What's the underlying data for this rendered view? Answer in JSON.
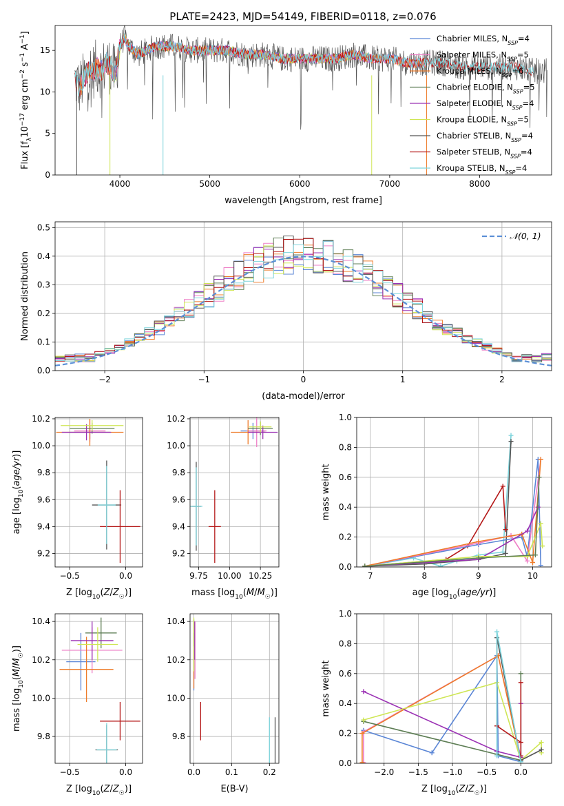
{
  "figure_title": "PLATE=2423, MJD=54149, FIBERID=0118, z=0.076",
  "colors": {
    "chabrier_miles": "#5b86d6",
    "salpeter_miles": "#ee7ec6",
    "kroupa_miles": "#ee7c2a",
    "chabrier_elodie": "#5e7e55",
    "salpeter_elodie": "#9b31b4",
    "kroupa_elodie": "#cfe655",
    "chabrier_stelib": "#555555",
    "salpeter_stelib": "#b51818",
    "kroupa_stelib": "#7dd4dc",
    "normal": "#5b8fd6"
  },
  "chart_data": [
    {
      "id": "spectrum",
      "type": "line",
      "title": "PLATE=2423, MJD=54149, FIBERID=0118, z=0.076",
      "xlabel": "wavelength [Angstrom, rest frame]",
      "ylabel": "Flux [f_λ10^-17 erg cm^-2 s^-1 A^-1]",
      "xlim": [
        3280,
        8800
      ],
      "ylim": [
        0,
        18
      ],
      "xticks": [
        4000,
        5000,
        6000,
        7000,
        8000
      ],
      "yticks": [
        0,
        5,
        10,
        15
      ],
      "grid": false,
      "legend_position": "top-right",
      "legend": [
        {
          "key": "chabrier_miles",
          "label": "Chabrier MILES, N",
          "sub": "SSP",
          "suffix": "=4"
        },
        {
          "key": "salpeter_miles",
          "label": "Salpeter MILES, N",
          "sub": "SSP",
          "suffix": "=5"
        },
        {
          "key": "kroupa_miles",
          "label": "Kroupa MILES, N",
          "sub": "SSP",
          "suffix": "=6"
        },
        {
          "key": "chabrier_elodie",
          "label": "Chabrier ELODIE, N",
          "sub": "SSP",
          "suffix": "=5"
        },
        {
          "key": "salpeter_elodie",
          "label": "Salpeter ELODIE, N",
          "sub": "SSP",
          "suffix": "=4"
        },
        {
          "key": "kroupa_elodie",
          "label": "Kroupa ELODIE, N",
          "sub": "SSP",
          "suffix": "=5"
        },
        {
          "key": "chabrier_stelib",
          "label": "Chabrier STELIB, N",
          "sub": "SSP",
          "suffix": "=4"
        },
        {
          "key": "salpeter_stelib",
          "label": "Salpeter STELIB, N",
          "sub": "SSP",
          "suffix": "=4"
        },
        {
          "key": "kroupa_stelib",
          "label": "Kroupa STELIB, N",
          "sub": "SSP",
          "suffix": "=4"
        }
      ],
      "data_series": {
        "x": [
          3500,
          3550,
          3600,
          3650,
          3700,
          3750,
          3800,
          3850,
          3900,
          3950,
          4000,
          4050,
          4100,
          4150,
          4200,
          4300,
          4400,
          4500,
          4600,
          4800,
          5000,
          5200,
          5400,
          5600,
          5800,
          6000,
          6200,
          6400,
          6600,
          6800,
          7000,
          7200,
          7400,
          7600,
          7800,
          8000,
          8200,
          8400,
          8600,
          8800
        ],
        "y": [
          11.5,
          10.5,
          11.5,
          12.5,
          12.5,
          13.0,
          12.5,
          13.5,
          13.0,
          12.0,
          15.5,
          16.5,
          15.5,
          15.0,
          14.5,
          15.0,
          15.5,
          15.5,
          15.5,
          15.0,
          15.0,
          15.0,
          14.5,
          14.5,
          14.0,
          14.0,
          14.0,
          14.0,
          14.5,
          14.0,
          14.0,
          13.5,
          13.5,
          13.5,
          13.0,
          13.0,
          13.0,
          13.0,
          12.5,
          12.5
        ]
      }
    },
    {
      "id": "residuals",
      "type": "histogram",
      "xlabel": "(data-model)/error",
      "ylabel": "Normed distribution",
      "xlim": [
        -2.5,
        2.5
      ],
      "ylim": [
        0,
        0.52
      ],
      "xticks": [
        -2,
        -1,
        0,
        1,
        2
      ],
      "yticks": [
        0.0,
        0.1,
        0.2,
        0.3,
        0.4,
        0.5
      ],
      "grid": true,
      "legend_position": "top-right",
      "legend": [
        {
          "key": "normal",
          "label": "𝒩(0, 1)"
        }
      ],
      "bin_width": 0.1,
      "bin_start": -2.5
    },
    {
      "id": "age_vs_Z",
      "type": "scatter",
      "xlabel": "Z [log10(Z/Z☉)]",
      "ylabel": "age  [log10(age/yr)]",
      "xlim": [
        -0.63,
        0.15
      ],
      "ylim": [
        9.1,
        10.21
      ],
      "xticks": [
        -0.5,
        0.0
      ],
      "yticks": [
        9.2,
        9.4,
        9.6,
        9.8,
        10.0,
        10.2
      ],
      "grid": true,
      "points": [
        {
          "key": "chabrier_miles",
          "x": -0.32,
          "y": 10.1,
          "xerr": 0.18,
          "yerr": 0.05
        },
        {
          "key": "salpeter_miles",
          "x": -0.32,
          "y": 10.11,
          "xerr": 0.14,
          "yerr": 0.08
        },
        {
          "key": "kroupa_miles",
          "x": -0.32,
          "y": 10.1,
          "xerr": 0.3,
          "yerr": 0.1
        },
        {
          "key": "chabrier_elodie",
          "x": -0.3,
          "y": 10.13,
          "xerr": 0.2,
          "yerr": 0.04
        },
        {
          "key": "salpeter_elodie",
          "x": -0.35,
          "y": 10.1,
          "xerr": 0.22,
          "yerr": 0.06
        },
        {
          "key": "kroupa_elodie",
          "x": -0.3,
          "y": 10.15,
          "xerr": 0.28,
          "yerr": 0.04
        },
        {
          "key": "chabrier_stelib",
          "x": -0.17,
          "y": 9.56,
          "xerr": 0.13,
          "yerr": 0.33
        },
        {
          "key": "salpeter_stelib",
          "x": -0.05,
          "y": 9.4,
          "xerr": 0.18,
          "yerr": 0.27
        },
        {
          "key": "kroupa_stelib",
          "x": -0.17,
          "y": 9.56,
          "xerr": 0.08,
          "yerr": 0.29
        }
      ]
    },
    {
      "id": "age_vs_mass",
      "type": "scatter",
      "xlabel": "mass [log10(M/M☉)]",
      "ylabel": "",
      "xlim": [
        9.68,
        10.4
      ],
      "ylim": [
        9.1,
        10.21
      ],
      "xticks": [
        9.75,
        10.0,
        10.25
      ],
      "yticks": [
        9.2,
        9.4,
        9.6,
        9.8,
        10.0,
        10.2
      ],
      "grid": true,
      "points": [
        {
          "key": "chabrier_miles",
          "x": 10.19,
          "y": 10.11,
          "xerr": 0.1,
          "yerr": 0.06
        },
        {
          "key": "salpeter_miles",
          "x": 10.22,
          "y": 10.11,
          "xerr": 0.08,
          "yerr": 0.12
        },
        {
          "key": "kroupa_miles",
          "x": 10.15,
          "y": 10.1,
          "xerr": 0.14,
          "yerr": 0.09
        },
        {
          "key": "chabrier_elodie",
          "x": 10.25,
          "y": 10.13,
          "xerr": 0.1,
          "yerr": 0.05
        },
        {
          "key": "salpeter_elodie",
          "x": 10.27,
          "y": 10.1,
          "xerr": 0.12,
          "yerr": 0.05
        },
        {
          "key": "kroupa_elodie",
          "x": 10.25,
          "y": 10.14,
          "xerr": 0.09,
          "yerr": 0.04
        },
        {
          "key": "chabrier_stelib",
          "x": 9.73,
          "y": 9.55,
          "xerr": 0.04,
          "yerr": 0.33
        },
        {
          "key": "salpeter_stelib",
          "x": 9.88,
          "y": 9.4,
          "xerr": 0.05,
          "yerr": 0.27
        },
        {
          "key": "kroupa_stelib",
          "x": 9.73,
          "y": 9.55,
          "xerr": 0.05,
          "yerr": 0.29
        }
      ]
    },
    {
      "id": "mass_weight_vs_age",
      "type": "line",
      "xlabel": "age  [log10(age/yr)]",
      "ylabel": "mass weight",
      "xlim": [
        6.75,
        10.35
      ],
      "ylim": [
        0,
        1.0
      ],
      "xticks": [
        7,
        8,
        9,
        10
      ],
      "yticks": [
        0.0,
        0.2,
        0.4,
        0.6,
        0.8,
        1.0
      ],
      "grid": true,
      "series": [
        {
          "key": "kroupa_stelib",
          "x": [
            6.9,
            7.8,
            8.3,
            8.6,
            9.0,
            9.45,
            9.6
          ],
          "y": [
            0.005,
            0.06,
            0.005,
            0.04,
            0.08,
            0.1,
            0.88
          ]
        },
        {
          "key": "chabrier_stelib",
          "x": [
            6.9,
            8.0,
            9.0,
            9.5,
            9.6
          ],
          "y": [
            0.005,
            0.02,
            0.05,
            0.09,
            0.84
          ]
        },
        {
          "key": "salpeter_stelib",
          "x": [
            6.9,
            8.4,
            8.8,
            9.45,
            9.5
          ],
          "y": [
            0.005,
            0.05,
            0.14,
            0.54,
            0.25
          ]
        },
        {
          "key": "chabrier_miles",
          "x": [
            6.9,
            9.0,
            9.8,
            9.9,
            10.1,
            10.15
          ],
          "y": [
            0.005,
            0.15,
            0.2,
            0.07,
            0.72,
            0.01
          ]
        },
        {
          "key": "salpeter_miles",
          "x": [
            6.9,
            9.0,
            9.6,
            9.9,
            10.15
          ],
          "y": [
            0.005,
            0.16,
            0.21,
            0.04,
            0.72
          ]
        },
        {
          "key": "kroupa_miles",
          "x": [
            6.9,
            9.0,
            9.8,
            10.0,
            10.15
          ],
          "y": [
            0.005,
            0.17,
            0.22,
            0.03,
            0.72
          ]
        },
        {
          "key": "salpeter_elodie",
          "x": [
            6.9,
            9.0,
            9.9,
            10.1
          ],
          "y": [
            0.005,
            0.05,
            0.24,
            0.4
          ]
        },
        {
          "key": "kroupa_elodie",
          "x": [
            6.9,
            9.0,
            9.9,
            10.15,
            10.18
          ],
          "y": [
            0.005,
            0.07,
            0.07,
            0.29,
            0.14
          ]
        },
        {
          "key": "chabrier_elodie",
          "x": [
            6.9,
            9.0,
            10.05,
            10.12
          ],
          "y": [
            0.005,
            0.06,
            0.08,
            0.6
          ]
        }
      ]
    },
    {
      "id": "mass_vs_Z",
      "type": "scatter",
      "xlabel": "Z [log10(Z/Z☉)]",
      "ylabel": "mass [log10(M/M☉)]",
      "xlim": [
        -0.63,
        0.15
      ],
      "ylim": [
        9.66,
        10.44
      ],
      "xticks": [
        -0.5,
        0.0
      ],
      "yticks": [
        9.8,
        10.0,
        10.2,
        10.4
      ],
      "grid": true,
      "points": [
        {
          "key": "chabrier_miles",
          "x": -0.4,
          "y": 10.19,
          "xerr": 0.13,
          "yerr": 0.15
        },
        {
          "key": "salpeter_miles",
          "x": -0.3,
          "y": 10.25,
          "xerr": 0.27,
          "yerr": 0.12
        },
        {
          "key": "kroupa_miles",
          "x": -0.35,
          "y": 10.15,
          "xerr": 0.24,
          "yerr": 0.17
        },
        {
          "key": "chabrier_elodie",
          "x": -0.22,
          "y": 10.34,
          "xerr": 0.14,
          "yerr": 0.08
        },
        {
          "key": "salpeter_elodie",
          "x": -0.3,
          "y": 10.3,
          "xerr": 0.19,
          "yerr": 0.1
        },
        {
          "key": "kroupa_elodie",
          "x": -0.25,
          "y": 10.28,
          "xerr": 0.18,
          "yerr": 0.09
        },
        {
          "key": "chabrier_stelib",
          "x": -0.17,
          "y": 9.73,
          "xerr": 0.1,
          "yerr": 0.13
        },
        {
          "key": "salpeter_stelib",
          "x": -0.05,
          "y": 9.88,
          "xerr": 0.18,
          "yerr": 0.1
        },
        {
          "key": "kroupa_stelib",
          "x": -0.17,
          "y": 9.73,
          "xerr": 0.09,
          "yerr": 0.14
        }
      ]
    },
    {
      "id": "mass_vs_ebv",
      "type": "scatter",
      "xlabel": "E(B-V)",
      "ylabel": "",
      "xlim": [
        -0.01,
        0.225
      ],
      "ylim": [
        9.66,
        10.44
      ],
      "xticks": [
        0.0,
        0.1,
        0.2
      ],
      "yticks": [
        9.8,
        10.0,
        10.2,
        10.4
      ],
      "grid": true,
      "points": [
        {
          "key": "chabrier_miles",
          "x": 0.0,
          "y": 10.19,
          "xerr": 0,
          "yerr": 0.15
        },
        {
          "key": "salpeter_miles",
          "x": 0.003,
          "y": 10.25,
          "xerr": 0,
          "yerr": 0.15
        },
        {
          "key": "kroupa_miles",
          "x": 0.0,
          "y": 10.15,
          "xerr": 0,
          "yerr": 0.1
        },
        {
          "key": "chabrier_elodie",
          "x": 0.0,
          "y": 10.34,
          "xerr": 0,
          "yerr": 0.07
        },
        {
          "key": "salpeter_elodie",
          "x": 0.002,
          "y": 10.3,
          "xerr": 0,
          "yerr": 0.1
        },
        {
          "key": "kroupa_elodie",
          "x": 0.0,
          "y": 10.28,
          "xerr": 0,
          "yerr": 0.14
        },
        {
          "key": "chabrier_stelib",
          "x": 0.215,
          "y": 9.75,
          "xerr": 0,
          "yerr": 0.15
        },
        {
          "key": "salpeter_stelib",
          "x": 0.018,
          "y": 9.88,
          "xerr": 0,
          "yerr": 0.1
        },
        {
          "key": "kroupa_stelib",
          "x": 0.2,
          "y": 9.73,
          "xerr": 0,
          "yerr": 0.17
        }
      ]
    },
    {
      "id": "mass_weight_vs_Z",
      "type": "line",
      "xlabel": "Z [log10(Z/Z☉)]",
      "ylabel": "mass weight",
      "xlim": [
        -2.4,
        0.45
      ],
      "ylim": [
        0,
        1.0
      ],
      "xticks": [
        -2.0,
        -1.5,
        -1.0,
        -0.5,
        0.0
      ],
      "yticks": [
        0.0,
        0.2,
        0.4,
        0.6,
        0.8,
        1.0
      ],
      "grid": true,
      "series": [
        {
          "key": "chabrier_miles",
          "x": [
            -2.3,
            -1.3,
            -0.35,
            -0.33,
            0.0
          ],
          "y": [
            0.22,
            0.07,
            0.72,
            0.05,
            0.01
          ]
        },
        {
          "key": "salpeter_miles",
          "x": [
            -2.3,
            -2.3,
            -0.33,
            0.0
          ],
          "y": [
            0.005,
            0.21,
            0.72,
            0.04
          ]
        },
        {
          "key": "kroupa_miles",
          "x": [
            -2.32,
            -2.32,
            -0.33,
            0.0
          ],
          "y": [
            0.005,
            0.2,
            0.72,
            0.02
          ]
        },
        {
          "key": "chabrier_elodie",
          "x": [
            -2.3,
            -0.35,
            0.0,
            0.0
          ],
          "y": [
            0.28,
            0.06,
            0.02,
            0.6
          ]
        },
        {
          "key": "salpeter_elodie",
          "x": [
            -2.3,
            -0.35,
            0.0,
            0.0
          ],
          "y": [
            0.48,
            0.08,
            0.04,
            0.4
          ]
        },
        {
          "key": "kroupa_elodie",
          "x": [
            -2.3,
            -0.35,
            0.0,
            0.3,
            0.3
          ],
          "y": [
            0.29,
            0.54,
            0.02,
            0.14,
            0.07
          ]
        },
        {
          "key": "chabrier_stelib",
          "x": [
            -0.35,
            -0.35,
            0.0,
            0.3
          ],
          "y": [
            0.25,
            0.84,
            0.02,
            0.09
          ]
        },
        {
          "key": "salpeter_stelib",
          "x": [
            -0.35,
            0.0,
            0.0,
            0.0
          ],
          "y": [
            0.25,
            0.14,
            0.54,
            0.05
          ]
        },
        {
          "key": "kroupa_stelib",
          "x": [
            -0.35,
            -0.35,
            0.0
          ],
          "y": [
            0.05,
            0.88,
            0.01
          ]
        }
      ]
    }
  ]
}
